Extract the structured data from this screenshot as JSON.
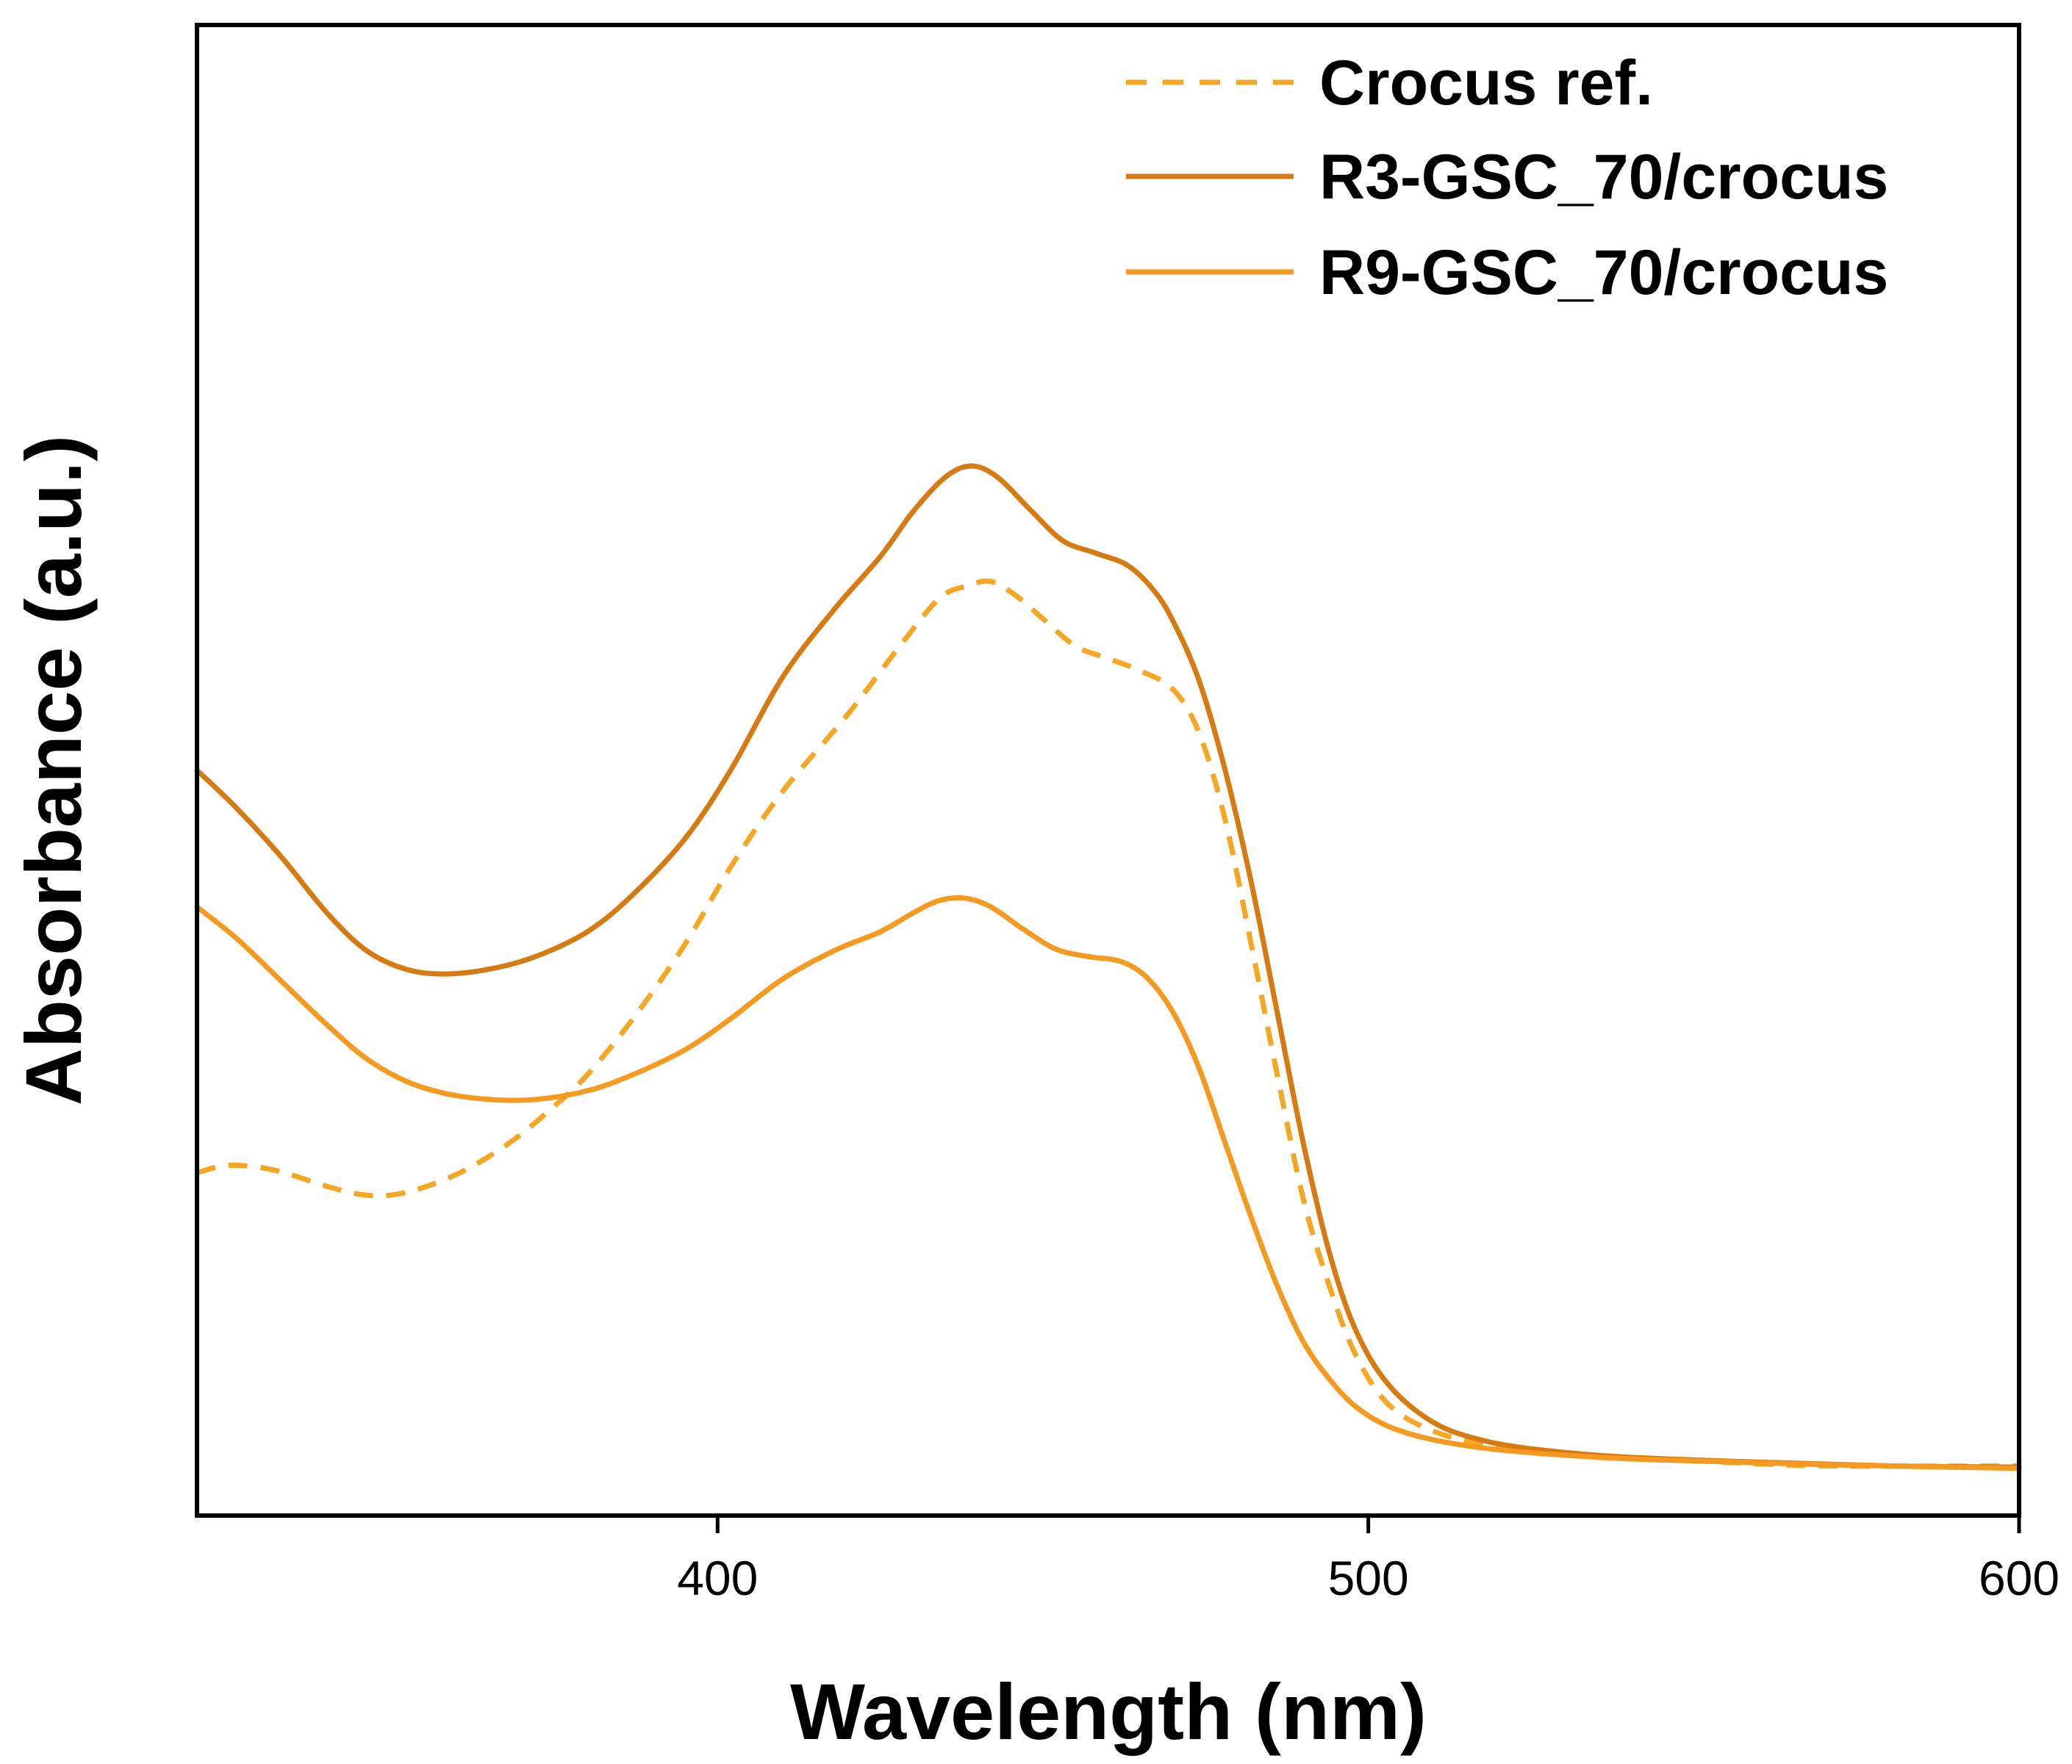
{
  "chart_data": {
    "type": "line",
    "title": "",
    "xlabel": "Wavelength (nm)",
    "ylabel": "Absorbance (a.u.)",
    "xlim": [
      320,
      600
    ],
    "ylim": [
      0,
      1.2
    ],
    "xticks": [
      400,
      500,
      600
    ],
    "x_tick_labels": [
      "400",
      "500",
      "600"
    ],
    "yticks": [],
    "grid": false,
    "legend_position": "top-right",
    "series": [
      {
        "name": "Crocus ref.",
        "color": "#F5A623",
        "style": "dashed",
        "points": [
          [
            320,
            0.276
          ],
          [
            325,
            0.282
          ],
          [
            332,
            0.278
          ],
          [
            340,
            0.265
          ],
          [
            346,
            0.258
          ],
          [
            352,
            0.26
          ],
          [
            360,
            0.275
          ],
          [
            368,
            0.3
          ],
          [
            375,
            0.33
          ],
          [
            380,
            0.355
          ],
          [
            387,
            0.4
          ],
          [
            395,
            0.46
          ],
          [
            402,
            0.522
          ],
          [
            410,
            0.583
          ],
          [
            420,
            0.645
          ],
          [
            428,
            0.7
          ],
          [
            434,
            0.738
          ],
          [
            438,
            0.748
          ],
          [
            442,
            0.752
          ],
          [
            446,
            0.74
          ],
          [
            450,
            0.722
          ],
          [
            455,
            0.7
          ],
          [
            460,
            0.69
          ],
          [
            465,
            0.68
          ],
          [
            470,
            0.665
          ],
          [
            474,
            0.63
          ],
          [
            478,
            0.56
          ],
          [
            482,
            0.46
          ],
          [
            486,
            0.355
          ],
          [
            490,
            0.255
          ],
          [
            494,
            0.185
          ],
          [
            498,
            0.13
          ],
          [
            503,
            0.09
          ],
          [
            510,
            0.068
          ],
          [
            520,
            0.055
          ],
          [
            535,
            0.047
          ],
          [
            550,
            0.044
          ],
          [
            570,
            0.04
          ],
          [
            600,
            0.04
          ]
        ]
      },
      {
        "name": "R3-GSC_70/crocus",
        "color": "#D67A11",
        "style": "solid",
        "points": [
          [
            320,
            0.6
          ],
          [
            326,
            0.57
          ],
          [
            333,
            0.53
          ],
          [
            340,
            0.485
          ],
          [
            346,
            0.455
          ],
          [
            352,
            0.44
          ],
          [
            358,
            0.436
          ],
          [
            365,
            0.44
          ],
          [
            372,
            0.45
          ],
          [
            380,
            0.47
          ],
          [
            387,
            0.5
          ],
          [
            395,
            0.545
          ],
          [
            402,
            0.6
          ],
          [
            410,
            0.675
          ],
          [
            418,
            0.73
          ],
          [
            425,
            0.772
          ],
          [
            430,
            0.808
          ],
          [
            435,
            0.836
          ],
          [
            439,
            0.845
          ],
          [
            443,
            0.836
          ],
          [
            448,
            0.81
          ],
          [
            453,
            0.785
          ],
          [
            458,
            0.775
          ],
          [
            463,
            0.765
          ],
          [
            467,
            0.745
          ],
          [
            470,
            0.72
          ],
          [
            474,
            0.672
          ],
          [
            478,
            0.6
          ],
          [
            482,
            0.51
          ],
          [
            486,
            0.405
          ],
          [
            490,
            0.3
          ],
          [
            494,
            0.212
          ],
          [
            498,
            0.15
          ],
          [
            503,
            0.106
          ],
          [
            510,
            0.075
          ],
          [
            518,
            0.06
          ],
          [
            528,
            0.052
          ],
          [
            540,
            0.047
          ],
          [
            560,
            0.043
          ],
          [
            580,
            0.04
          ],
          [
            600,
            0.039
          ]
        ]
      },
      {
        "name": "R9-GSC_70/crocus",
        "color": "#F59A1E",
        "style": "solid",
        "points": [
          [
            320,
            0.49
          ],
          [
            326,
            0.465
          ],
          [
            333,
            0.43
          ],
          [
            340,
            0.395
          ],
          [
            346,
            0.368
          ],
          [
            352,
            0.35
          ],
          [
            358,
            0.34
          ],
          [
            365,
            0.335
          ],
          [
            372,
            0.335
          ],
          [
            380,
            0.342
          ],
          [
            387,
            0.355
          ],
          [
            395,
            0.375
          ],
          [
            402,
            0.4
          ],
          [
            410,
            0.432
          ],
          [
            418,
            0.455
          ],
          [
            425,
            0.47
          ],
          [
            430,
            0.485
          ],
          [
            434,
            0.495
          ],
          [
            438,
            0.497
          ],
          [
            442,
            0.49
          ],
          [
            447,
            0.472
          ],
          [
            452,
            0.456
          ],
          [
            457,
            0.45
          ],
          [
            462,
            0.446
          ],
          [
            466,
            0.433
          ],
          [
            470,
            0.405
          ],
          [
            474,
            0.36
          ],
          [
            478,
            0.3
          ],
          [
            482,
            0.24
          ],
          [
            486,
            0.185
          ],
          [
            490,
            0.14
          ],
          [
            494,
            0.11
          ],
          [
            498,
            0.088
          ],
          [
            503,
            0.072
          ],
          [
            510,
            0.061
          ],
          [
            520,
            0.053
          ],
          [
            535,
            0.047
          ],
          [
            550,
            0.044
          ],
          [
            570,
            0.041
          ],
          [
            600,
            0.038
          ]
        ]
      }
    ]
  }
}
